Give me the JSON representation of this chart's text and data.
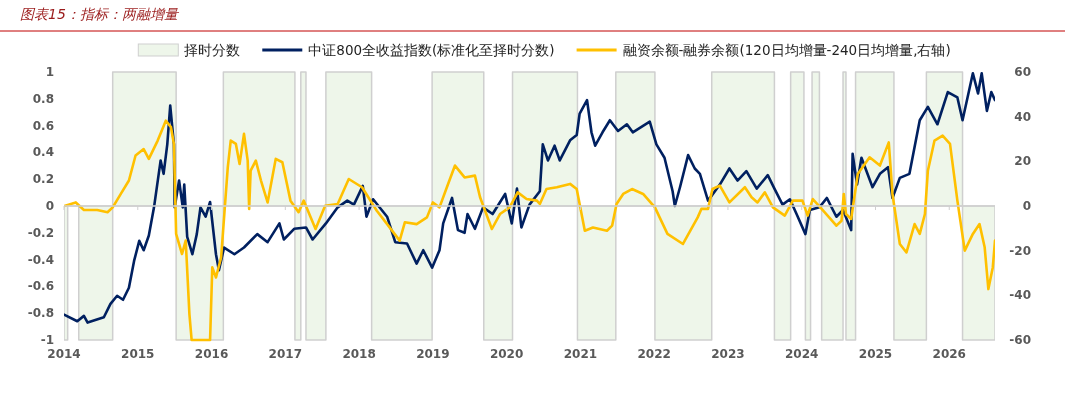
{
  "chart_data": {
    "type": "line",
    "title": "图表15：指标：两融增量",
    "legend": "top",
    "xlim": [
      2014,
      2026.62
    ],
    "xticks": [
      {
        "value": 2014,
        "label": "2014"
      },
      {
        "value": 2015,
        "label": "2015"
      },
      {
        "value": 2016,
        "label": "2016"
      },
      {
        "value": 2017,
        "label": "2017"
      },
      {
        "value": 2018,
        "label": "2018"
      },
      {
        "value": 2019,
        "label": "2019"
      },
      {
        "value": 2020,
        "label": "2020"
      },
      {
        "value": 2021,
        "label": "2021"
      },
      {
        "value": 2022,
        "label": "2022"
      },
      {
        "value": 2023,
        "label": "2023"
      },
      {
        "value": 2024,
        "label": "2024"
      },
      {
        "value": 2025,
        "label": "2025"
      },
      {
        "value": 2026,
        "label": "2026"
      }
    ],
    "ylim": [
      -1,
      1
    ],
    "yticks": [
      -1,
      -0.8,
      -0.6,
      -0.4,
      -0.2,
      0,
      0.2,
      0.4,
      0.6,
      0.8,
      1
    ],
    "y2lim": [
      -60,
      60
    ],
    "y2ticks": [
      -60,
      -40,
      -20,
      0,
      20,
      40,
      60
    ],
    "series": [
      {
        "name": "择时分数",
        "type": "area",
        "color": "#eef6ea",
        "x": [
          2014,
          2014.05,
          2014.05,
          2014.2,
          2014.2,
          2014.66,
          2014.66,
          2015.52,
          2015.52,
          2016.16,
          2016.16,
          2017.13,
          2017.13,
          2017.21,
          2017.21,
          2017.28,
          2017.28,
          2017.55,
          2017.55,
          2018.17,
          2018.17,
          2018.99,
          2018.99,
          2019.69,
          2019.69,
          2020.08,
          2020.08,
          2020.96,
          2020.96,
          2021.48,
          2021.48,
          2022.01,
          2022.01,
          2022.78,
          2022.78,
          2023.63,
          2023.63,
          2023.85,
          2023.85,
          2024.03,
          2024.03,
          2024.05,
          2024.05,
          2024.12,
          2024.12,
          2024.14,
          2024.14,
          2024.24,
          2024.24,
          2024.27,
          2024.27,
          2024.56,
          2024.56,
          2024.6,
          2024.6,
          2024.73,
          2024.73,
          2025.25,
          2025.25,
          2025.69,
          2025.69,
          2026.18,
          2026.18,
          2026.62
        ],
        "values": [
          -1,
          -1,
          0,
          0,
          -1,
          -1,
          1,
          1,
          -1,
          -1,
          1,
          1,
          -1,
          -1,
          1,
          1,
          -1,
          -1,
          1,
          1,
          -1,
          -1,
          1,
          1,
          -1,
          -1,
          1,
          1,
          -1,
          -1,
          1,
          1,
          -1,
          -1,
          1,
          1,
          -1,
          -1,
          1,
          1,
          0,
          0,
          -1,
          -1,
          0,
          0,
          1,
          1,
          0,
          0,
          -1,
          -1,
          1,
          1,
          -1,
          -1,
          1,
          1,
          -1,
          -1,
          1,
          1,
          -1,
          -1
        ]
      },
      {
        "name": "中证800全收益指数(标准化至择时分数)",
        "color": "#002060",
        "x": [
          2014.0,
          2014.18,
          2014.27,
          2014.32,
          2014.54,
          2014.63,
          2014.72,
          2014.8,
          2014.88,
          2014.95,
          2015.02,
          2015.08,
          2015.15,
          2015.22,
          2015.31,
          2015.35,
          2015.4,
          2015.44,
          2015.49,
          2015.5,
          2015.56,
          2015.61,
          2015.63,
          2015.67,
          2015.74,
          2015.8,
          2015.85,
          2015.92,
          2015.98,
          2016.06,
          2016.1,
          2016.17,
          2016.31,
          2016.44,
          2016.62,
          2016.76,
          2016.92,
          2016.98,
          2017.12,
          2017.28,
          2017.37,
          2017.55,
          2017.71,
          2017.84,
          2017.93,
          2018.05,
          2018.1,
          2018.19,
          2018.38,
          2018.49,
          2018.65,
          2018.78,
          2018.87,
          2018.99,
          2019.09,
          2019.14,
          2019.26,
          2019.34,
          2019.43,
          2019.47,
          2019.57,
          2019.68,
          2019.81,
          2019.98,
          2020.07,
          2020.14,
          2020.2,
          2020.31,
          2020.45,
          2020.49,
          2020.56,
          2020.65,
          2020.72,
          2020.86,
          2020.95,
          2020.99,
          2021.09,
          2021.15,
          2021.2,
          2021.3,
          2021.4,
          2021.51,
          2021.63,
          2021.71,
          2021.94,
          2022.03,
          2022.14,
          2022.25,
          2022.28,
          2022.35,
          2022.46,
          2022.55,
          2022.62,
          2022.73,
          2022.89,
          2023.02,
          2023.13,
          2023.25,
          2023.39,
          2023.54,
          2023.63,
          2023.74,
          2023.84,
          2023.93,
          2024.05,
          2024.11,
          2024.24,
          2024.34,
          2024.47,
          2024.56,
          2024.67,
          2024.69,
          2024.75,
          2024.81,
          2024.96,
          2025.06,
          2025.17,
          2025.23,
          2025.33,
          2025.46,
          2025.6,
          2025.71,
          2025.84,
          2025.98,
          2026.11,
          2026.18,
          2026.32,
          2026.39,
          2026.44,
          2026.51,
          2026.57,
          2026.62
        ],
        "values": [
          -0.81,
          -0.86,
          -0.82,
          -0.87,
          -0.83,
          -0.73,
          -0.67,
          -0.7,
          -0.61,
          -0.41,
          -0.26,
          -0.33,
          -0.22,
          -0.01,
          0.34,
          0.24,
          0.46,
          0.75,
          0.46,
          -0.01,
          0.19,
          -0.01,
          0.16,
          -0.23,
          -0.36,
          -0.21,
          -0.01,
          -0.08,
          0.03,
          -0.36,
          -0.48,
          -0.31,
          -0.36,
          -0.31,
          -0.21,
          -0.27,
          -0.13,
          -0.25,
          -0.17,
          -0.16,
          -0.25,
          -0.13,
          -0.01,
          0.04,
          0.01,
          0.15,
          -0.08,
          0.05,
          -0.08,
          -0.27,
          -0.28,
          -0.43,
          -0.33,
          -0.46,
          -0.33,
          -0.13,
          0.06,
          -0.18,
          -0.2,
          -0.06,
          -0.17,
          -0.01,
          -0.06,
          0.09,
          -0.13,
          0.13,
          -0.16,
          0.01,
          0.11,
          0.46,
          0.34,
          0.45,
          0.34,
          0.49,
          0.53,
          0.69,
          0.79,
          0.55,
          0.45,
          0.55,
          0.64,
          0.56,
          0.61,
          0.55,
          0.63,
          0.46,
          0.36,
          0.11,
          0.0,
          0.14,
          0.38,
          0.28,
          0.24,
          0.04,
          0.16,
          0.28,
          0.19,
          0.26,
          0.13,
          0.23,
          0.13,
          0.01,
          0.05,
          -0.06,
          -0.21,
          -0.03,
          -0.01,
          0.06,
          -0.08,
          -0.03,
          -0.18,
          0.39,
          0.16,
          0.36,
          0.14,
          0.24,
          0.29,
          0.06,
          0.21,
          0.24,
          0.64,
          0.74,
          0.61,
          0.85,
          0.81,
          0.64,
          0.99,
          0.84,
          0.99,
          0.71,
          0.85,
          0.79
        ]
      },
      {
        "name": "融资余额-融券余额(120日均增量-240日均增量,右轴)",
        "color": "#ffc000",
        "axis": "y2",
        "x": [
          2014.0,
          2014.16,
          2014.27,
          2014.45,
          2014.59,
          2014.66,
          2014.77,
          2014.88,
          2014.97,
          2015.08,
          2015.15,
          2015.27,
          2015.38,
          2015.45,
          2015.49,
          2015.52,
          2015.6,
          2015.65,
          2015.7,
          2015.73,
          2015.98,
          2016.01,
          2016.06,
          2016.13,
          2016.22,
          2016.26,
          2016.33,
          2016.38,
          2016.44,
          2016.49,
          2016.51,
          2016.53,
          2016.6,
          2016.67,
          2016.76,
          2016.87,
          2016.96,
          2017.07,
          2017.18,
          2017.25,
          2017.41,
          2017.54,
          2017.71,
          2017.86,
          2018.04,
          2018.24,
          2018.38,
          2018.55,
          2018.62,
          2018.78,
          2018.92,
          2019.0,
          2019.09,
          2019.19,
          2019.3,
          2019.43,
          2019.57,
          2019.64,
          2019.8,
          2019.91,
          2020.04,
          2020.15,
          2020.27,
          2020.41,
          2020.45,
          2020.54,
          2020.68,
          2020.86,
          2020.95,
          2021.06,
          2021.17,
          2021.36,
          2021.43,
          2021.49,
          2021.58,
          2021.7,
          2021.85,
          2022.01,
          2022.18,
          2022.39,
          2022.59,
          2022.64,
          2022.73,
          2022.79,
          2022.89,
          2023.02,
          2023.23,
          2023.32,
          2023.4,
          2023.5,
          2023.61,
          2023.77,
          2023.88,
          2024.01,
          2024.08,
          2024.15,
          2024.27,
          2024.47,
          2024.54,
          2024.57,
          2024.6,
          2024.67,
          2024.76,
          2024.92,
          2025.06,
          2025.18,
          2025.23,
          2025.33,
          2025.42,
          2025.53,
          2025.6,
          2025.67,
          2025.71,
          2025.8,
          2025.91,
          2026.01,
          2026.11,
          2026.21,
          2026.32,
          2026.41,
          2026.48,
          2026.53,
          2026.59,
          2026.62
        ],
        "values": [
          0,
          1.6,
          -1.8,
          -1.8,
          -2.8,
          -0.6,
          5.4,
          11.4,
          22.6,
          25.5,
          21.1,
          29.3,
          38.2,
          35.3,
          27.8,
          -12.5,
          -21.5,
          -15.5,
          -48.4,
          -60,
          -60,
          -27.5,
          -32,
          -23,
          17.3,
          29.3,
          27.8,
          18.8,
          32.3,
          20.3,
          -1.3,
          15.8,
          20.3,
          11.4,
          1.6,
          21.1,
          19.6,
          2.4,
          -2.8,
          2.4,
          -10.3,
          0.1,
          0.9,
          12.1,
          8.4,
          -2.1,
          -8.1,
          -15.5,
          -7.3,
          -8.1,
          -5.1,
          1.6,
          -0.6,
          8.4,
          18.1,
          12.8,
          13.6,
          3.9,
          -10.3,
          -3.6,
          -0.6,
          6.1,
          3.1,
          2.4,
          0.9,
          7.6,
          8.4,
          9.9,
          7.6,
          -11.1,
          -9.6,
          -11.1,
          -8.8,
          0.9,
          5.4,
          7.6,
          5.4,
          -0.6,
          -12.5,
          -17,
          -5.1,
          -1.3,
          -1.3,
          7.6,
          9.1,
          1.6,
          8.4,
          3.9,
          1.6,
          6.1,
          -0.6,
          -4.3,
          2.4,
          2.4,
          -4.3,
          3.1,
          -1.3,
          -8.8,
          -6.6,
          5.4,
          -3.6,
          -5.8,
          14.3,
          21.8,
          18.1,
          28.5,
          5.4,
          -17,
          -20.8,
          -8.1,
          -12.5,
          -3.6,
          15.8,
          29.3,
          31.5,
          27.8,
          2.4,
          -20,
          -12.5,
          -8.1,
          -18.5,
          -37.2,
          -27.5,
          -15.5
        ]
      }
    ]
  }
}
